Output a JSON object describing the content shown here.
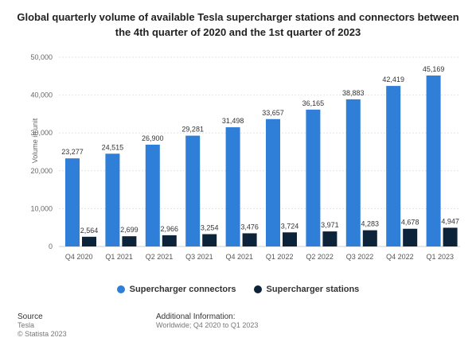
{
  "chart_data": {
    "type": "bar",
    "title": "Global quarterly volume of available Tesla supercharger stations and connectors between the 4th quarter of 2020 and the 1st quarter of 2023",
    "ylabel": "Volume in unit",
    "xlabel": "",
    "ylim": [
      0,
      50000
    ],
    "yticks": [
      "0",
      "10,000",
      "20,000",
      "30,000",
      "40,000",
      "50,000"
    ],
    "grid": true,
    "legend_position": "bottom",
    "categories": [
      "Q4 2020",
      "Q1 2021",
      "Q2 2021",
      "Q3 2021",
      "Q4 2021",
      "Q1 2022",
      "Q2 2022",
      "Q3 2022",
      "Q4 2022",
      "Q1 2023"
    ],
    "series": [
      {
        "name": "Supercharger connectors",
        "color": "#2f7ed8",
        "values": [
          23277,
          24515,
          26900,
          29281,
          31498,
          33657,
          36165,
          38883,
          42419,
          45169
        ],
        "labels": [
          "23,277",
          "24,515",
          "26,900",
          "29,281",
          "31,498",
          "33,657",
          "36,165",
          "38,883",
          "42,419",
          "45,169"
        ]
      },
      {
        "name": "Supercharger stations",
        "color": "#0d233a",
        "values": [
          2564,
          2699,
          2966,
          3254,
          3476,
          3724,
          3971,
          4283,
          4678,
          4947
        ],
        "labels": [
          "2,564",
          "2,699",
          "2,966",
          "3,254",
          "3,476",
          "3,724",
          "3,971",
          "4,283",
          "4,678",
          "4,947"
        ]
      }
    ]
  },
  "footer": {
    "source_heading": "Source",
    "source_name": "Tesla",
    "copyright": "© Statista 2023",
    "additional_heading": "Additional Information:",
    "additional_text": "Worldwide; Q4 2020 to Q1 2023"
  }
}
